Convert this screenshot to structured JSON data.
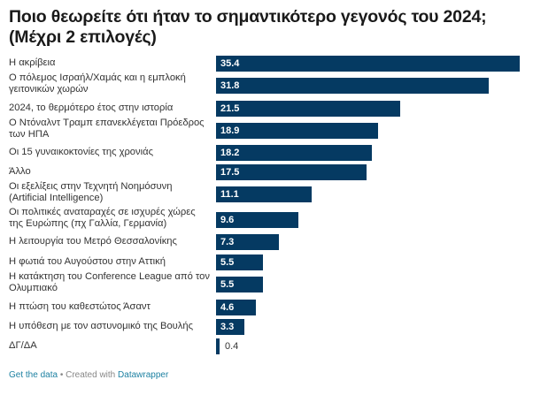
{
  "header": {
    "title": "Ποιο θεωρείτε ότι ήταν το σημαντικότερο γεγονός του 2024; (Μέχρι 2 επιλογές)"
  },
  "colors": {
    "bar": "#053a62",
    "link": "#1d81a2"
  },
  "chart_data": {
    "type": "bar",
    "orientation": "horizontal",
    "title": "Ποιο θεωρείτε ότι ήταν το σημαντικότερο γεγονός του 2024; (Μέχρι 2 επιλογές)",
    "xlim": [
      0,
      35.4
    ],
    "categories": [
      "Η ακρίβεια",
      "Ο πόλεμος Ισραήλ/Χαμάς και η εμπλοκή γειτονικών χωρών",
      "2024, το θερμότερο έτος στην ιστορία",
      "Ο Ντόναλντ Τραμπ επανεκλέγεται Πρόεδρος των ΗΠΑ",
      "Οι 15 γυναικοκτονίες της χρονιάς",
      "Άλλο",
      "Οι εξελίξεις στην Τεχνητή Νοημόσυνη (Artificial Intelligence)",
      "Οι πολιτικές αναταραχές σε ισχυρές χώρες της Ευρώπης (πχ Γαλλία, Γερμανία)",
      "Η λειτουργία του Μετρό Θεσσαλονίκης",
      "Η φωτιά του Αυγούστου στην Αττική",
      "Η κατάκτηση του Conference League από τον Ολυμπιακό",
      "Η πτώση του καθεστώτος Άσαντ",
      "Η υπόθεση με τον αστυνομικό της Βουλής",
      "ΔΓ/ΔΑ"
    ],
    "values": [
      35.4,
      31.8,
      21.5,
      18.9,
      18.2,
      17.5,
      11.1,
      9.6,
      7.3,
      5.5,
      5.5,
      4.6,
      3.3,
      0.4
    ],
    "value_labels": [
      "35.4",
      "31.8",
      "21.5",
      "18.9",
      "18.2",
      "17.5",
      "11.1",
      "9.6",
      "7.3",
      "5.5",
      "5.5",
      "4.6",
      "3.3",
      "0.4"
    ]
  },
  "footer": {
    "get_data": "Get the data",
    "separator": " • Created with ",
    "datawrapper": "Datawrapper"
  }
}
